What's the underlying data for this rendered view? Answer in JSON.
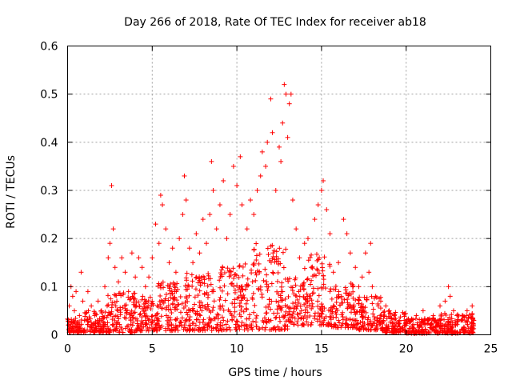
{
  "chart_data": {
    "type": "scatter",
    "title": "Day 266 of 2018, Rate Of TEC Index for receiver ab18",
    "xlabel": "GPS time / hours",
    "ylabel": "ROTI / TECUs",
    "xlim": [
      0,
      25
    ],
    "ylim": [
      0,
      0.6
    ],
    "xticks": [
      0,
      5,
      10,
      15,
      20,
      25
    ],
    "yticks": [
      0,
      0.1,
      0.2,
      0.3,
      0.4,
      0.5,
      0.6
    ],
    "xtick_labels": [
      "0",
      "5",
      "10",
      "15",
      "20",
      "25"
    ],
    "ytick_labels": [
      "0",
      "0.1",
      "0.2",
      "0.3",
      "0.4",
      "0.5",
      "0.6"
    ],
    "grid": true,
    "marker": "plus",
    "color": "#ff0000",
    "points": [
      [
        0.05,
        0.02
      ],
      [
        0.1,
        0.06
      ],
      [
        0.2,
        0.1
      ],
      [
        0.3,
        0.08
      ],
      [
        0.4,
        0.05
      ],
      [
        0.5,
        0.09
      ],
      [
        0.7,
        0.04
      ],
      [
        0.8,
        0.13
      ],
      [
        0.9,
        0.07
      ],
      [
        1.0,
        0.03
      ],
      [
        1.2,
        0.09
      ],
      [
        1.4,
        0.06
      ],
      [
        1.6,
        0.04
      ],
      [
        1.8,
        0.07
      ],
      [
        2.0,
        0.05
      ],
      [
        2.2,
        0.1
      ],
      [
        2.4,
        0.16
      ],
      [
        2.5,
        0.19
      ],
      [
        2.6,
        0.31
      ],
      [
        2.7,
        0.22
      ],
      [
        2.8,
        0.14
      ],
      [
        3.0,
        0.11
      ],
      [
        3.2,
        0.16
      ],
      [
        3.4,
        0.13
      ],
      [
        3.6,
        0.09
      ],
      [
        3.8,
        0.17
      ],
      [
        4.0,
        0.12
      ],
      [
        4.2,
        0.16
      ],
      [
        4.4,
        0.14
      ],
      [
        4.6,
        0.1
      ],
      [
        4.8,
        0.12
      ],
      [
        5.0,
        0.16
      ],
      [
        5.2,
        0.23
      ],
      [
        5.4,
        0.19
      ],
      [
        5.5,
        0.29
      ],
      [
        5.6,
        0.27
      ],
      [
        5.8,
        0.22
      ],
      [
        6.0,
        0.15
      ],
      [
        6.2,
        0.18
      ],
      [
        6.4,
        0.13
      ],
      [
        6.6,
        0.2
      ],
      [
        6.8,
        0.25
      ],
      [
        6.9,
        0.33
      ],
      [
        7.0,
        0.28
      ],
      [
        7.2,
        0.18
      ],
      [
        7.4,
        0.15
      ],
      [
        7.6,
        0.21
      ],
      [
        7.8,
        0.17
      ],
      [
        8.0,
        0.24
      ],
      [
        8.2,
        0.19
      ],
      [
        8.4,
        0.25
      ],
      [
        8.5,
        0.36
      ],
      [
        8.6,
        0.3
      ],
      [
        8.8,
        0.22
      ],
      [
        9.0,
        0.27
      ],
      [
        9.2,
        0.32
      ],
      [
        9.4,
        0.2
      ],
      [
        9.6,
        0.25
      ],
      [
        9.8,
        0.35
      ],
      [
        10.0,
        0.31
      ],
      [
        10.2,
        0.37
      ],
      [
        10.3,
        0.27
      ],
      [
        10.6,
        0.22
      ],
      [
        10.8,
        0.28
      ],
      [
        11.0,
        0.25
      ],
      [
        11.2,
        0.3
      ],
      [
        11.4,
        0.33
      ],
      [
        11.5,
        0.38
      ],
      [
        11.7,
        0.35
      ],
      [
        11.8,
        0.4
      ],
      [
        12.0,
        0.49
      ],
      [
        12.1,
        0.42
      ],
      [
        12.3,
        0.3
      ],
      [
        12.5,
        0.39
      ],
      [
        12.6,
        0.36
      ],
      [
        12.7,
        0.44
      ],
      [
        12.8,
        0.52
      ],
      [
        12.9,
        0.5
      ],
      [
        13.0,
        0.41
      ],
      [
        13.1,
        0.48
      ],
      [
        13.2,
        0.5
      ],
      [
        13.3,
        0.28
      ],
      [
        13.5,
        0.22
      ],
      [
        13.7,
        0.16
      ],
      [
        14.0,
        0.19
      ],
      [
        14.2,
        0.2
      ],
      [
        14.4,
        0.14
      ],
      [
        14.6,
        0.24
      ],
      [
        14.8,
        0.27
      ],
      [
        15.0,
        0.3
      ],
      [
        15.1,
        0.32
      ],
      [
        15.3,
        0.26
      ],
      [
        15.5,
        0.21
      ],
      [
        15.7,
        0.13
      ],
      [
        16.0,
        0.15
      ],
      [
        16.3,
        0.24
      ],
      [
        16.5,
        0.21
      ],
      [
        16.7,
        0.17
      ],
      [
        17.0,
        0.14
      ],
      [
        17.2,
        0.1
      ],
      [
        17.4,
        0.12
      ],
      [
        17.6,
        0.17
      ],
      [
        17.8,
        0.13
      ],
      [
        17.9,
        0.19
      ],
      [
        18.0,
        0.1
      ],
      [
        18.2,
        0.08
      ],
      [
        18.5,
        0.07
      ],
      [
        18.8,
        0.06
      ],
      [
        19.0,
        0.05
      ],
      [
        19.3,
        0.04
      ],
      [
        19.6,
        0.03
      ],
      [
        20.0,
        0.02
      ],
      [
        20.3,
        0.03
      ],
      [
        20.6,
        0.04
      ],
      [
        21.0,
        0.05
      ],
      [
        21.3,
        0.03
      ],
      [
        21.6,
        0.04
      ],
      [
        22.0,
        0.06
      ],
      [
        22.3,
        0.07
      ],
      [
        22.5,
        0.1
      ],
      [
        22.6,
        0.08
      ],
      [
        22.8,
        0.05
      ],
      [
        23.0,
        0.04
      ],
      [
        23.3,
        0.03
      ],
      [
        23.6,
        0.05
      ],
      [
        23.9,
        0.06
      ],
      [
        24.0,
        0.03
      ]
    ],
    "bands": [
      [
        0.0,
        1.0,
        0.005,
        0.035
      ],
      [
        1.0,
        2.3,
        0.005,
        0.05
      ],
      [
        2.3,
        4.0,
        0.005,
        0.09
      ],
      [
        4.0,
        5.0,
        0.008,
        0.08
      ],
      [
        5.0,
        7.0,
        0.008,
        0.11
      ],
      [
        7.0,
        9.0,
        0.008,
        0.13
      ],
      [
        9.0,
        11.0,
        0.01,
        0.15
      ],
      [
        11.0,
        13.0,
        0.01,
        0.19
      ],
      [
        13.0,
        14.0,
        0.02,
        0.12
      ],
      [
        14.0,
        15.5,
        0.02,
        0.17
      ],
      [
        15.5,
        17.0,
        0.015,
        0.11
      ],
      [
        17.0,
        18.5,
        0.01,
        0.08
      ],
      [
        18.5,
        20.0,
        0.005,
        0.05
      ],
      [
        20.0,
        22.0,
        0.003,
        0.035
      ],
      [
        22.0,
        24.0,
        0.003,
        0.045
      ]
    ]
  }
}
